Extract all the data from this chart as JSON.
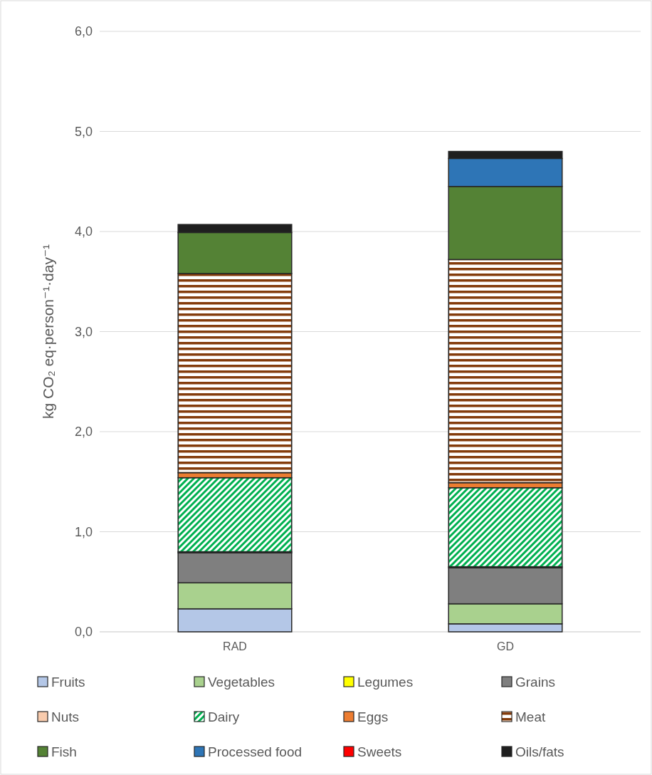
{
  "chart_data": {
    "type": "bar",
    "stacked": true,
    "ylabel": "kg CO₂ eq·person⁻¹·day⁻¹",
    "categories": [
      "RAD",
      "GD"
    ],
    "ylim": [
      0,
      6
    ],
    "yticks": [
      {
        "value": 0,
        "label": "0,0"
      },
      {
        "value": 1,
        "label": "1,0"
      },
      {
        "value": 2,
        "label": "2,0"
      },
      {
        "value": 3,
        "label": "3,0"
      },
      {
        "value": 4,
        "label": "4,0"
      },
      {
        "value": 5,
        "label": "5,0"
      },
      {
        "value": 6,
        "label": "6,0"
      }
    ],
    "grid": "y",
    "legend": "bottom",
    "series": [
      {
        "name": "Fruits",
        "color": "#b4c7e7",
        "values": [
          0.23,
          0.08
        ]
      },
      {
        "name": "Vegetables",
        "color": "#a9d18e",
        "values": [
          0.26,
          0.2
        ]
      },
      {
        "name": "Legumes",
        "color": "#ffff00",
        "values": [
          0,
          0
        ]
      },
      {
        "name": "Grains",
        "color": "#7f7f7f",
        "values": [
          0.3,
          0.36
        ]
      },
      {
        "name": "Nuts",
        "color": "#f8cbad",
        "values": [
          0.01,
          0.01
        ]
      },
      {
        "name": "Dairy",
        "color": "#00b050",
        "values": [
          0.74,
          0.79
        ]
      },
      {
        "name": "Eggs",
        "color": "#ed7d31",
        "values": [
          0.05,
          0.05
        ]
      },
      {
        "name": "Meat",
        "color": "#843c0c",
        "values": [
          1.99,
          2.23
        ]
      },
      {
        "name": "Fish",
        "color": "#548235",
        "values": [
          0.41,
          0.73
        ]
      },
      {
        "name": "Processed food",
        "color": "#2e75b6",
        "values": [
          0,
          0.28
        ]
      },
      {
        "name": "Sweets",
        "color": "#ff0000",
        "values": [
          0,
          0
        ]
      },
      {
        "name": "Oils/fats",
        "color": "#1f1f1f",
        "values": [
          0.08,
          0.07
        ]
      }
    ]
  }
}
